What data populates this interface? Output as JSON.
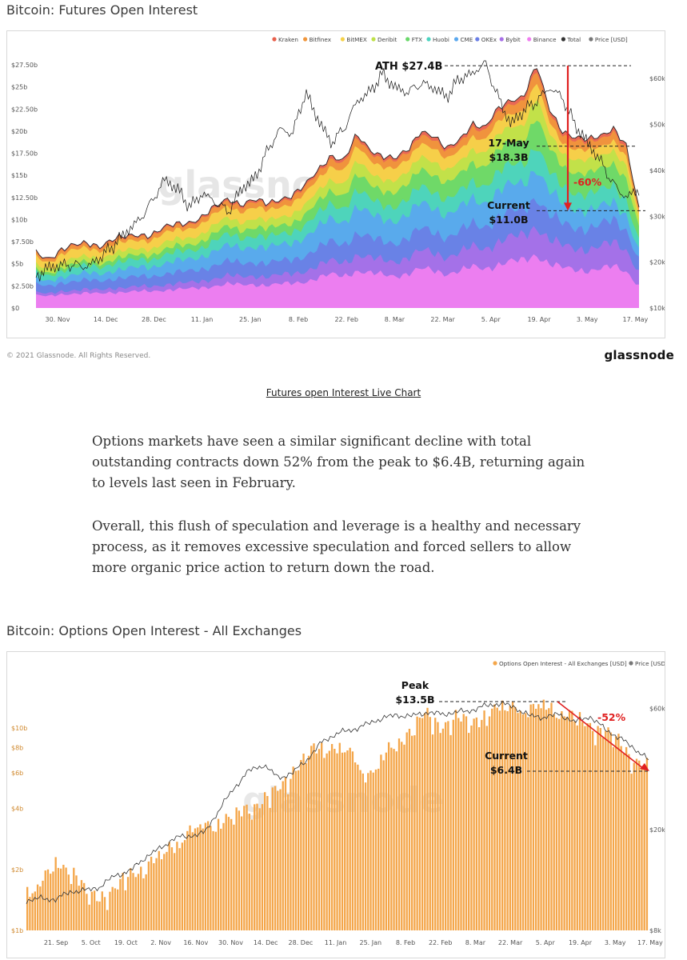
{
  "futures_title": "Bitcoin: Futures Open Interest",
  "copyright": "© 2021 Glassnode. All Rights Reserved.",
  "brand": "glassnode",
  "caption": "Futures open Interest Live Chart",
  "paragraphs": [
    "Options markets have seen a similar significant decline with total outstanding contracts down 52% from the peak to $6.4B, returning again to levels last seen in February.",
    "Overall, this flush of speculation and leverage is a healthy and necessary process, as it removes excessive speculation and forced sellers to allow more organic price action to return down the road."
  ],
  "options_title": "Bitcoin: Options Open Interest - All Exchanges",
  "watermark": "glassnode",
  "chart_data": [
    {
      "type": "area",
      "stacked": true,
      "title": "Bitcoin: Futures Open Interest",
      "legend": [
        {
          "name": "Kraken",
          "color": "#e8604c"
        },
        {
          "name": "Bitfinex",
          "color": "#f0963c"
        },
        {
          "name": "BitMEX",
          "color": "#f6d24a"
        },
        {
          "name": "Deribit",
          "color": "#bfe14a"
        },
        {
          "name": "FTX",
          "color": "#6ad86a"
        },
        {
          "name": "Huobi",
          "color": "#4cd4c0"
        },
        {
          "name": "CME",
          "color": "#5aa8ee"
        },
        {
          "name": "OKEx",
          "color": "#6a7fe6"
        },
        {
          "name": "Bybit",
          "color": "#a870e8"
        },
        {
          "name": "Binance",
          "color": "#f07ef0"
        },
        {
          "name": "Total",
          "color": "#333333"
        },
        {
          "name": "Price [USD]",
          "color": "#777777"
        }
      ],
      "legend_position": "top-right",
      "x_tick_labels": [
        "30. Nov",
        "14. Dec",
        "28. Dec",
        "11. Jan",
        "25. Jan",
        "8. Feb",
        "22. Feb",
        "8. Mar",
        "22. Mar",
        "5. Apr",
        "19. Apr",
        "3. May",
        "17. May"
      ],
      "y_left_labels": [
        "$0",
        "$2.50b",
        "$5b",
        "$7.50b",
        "$10b",
        "$12.50b",
        "$15b",
        "$17.50b",
        "$20b",
        "$22.50b",
        "$25b",
        "$27.50b"
      ],
      "ylim_left": [
        0,
        27.5
      ],
      "y_right_labels": [
        "$10k",
        "$20k",
        "$30k",
        "$40k",
        "$50k",
        "$60k"
      ],
      "ylim_right": [
        10000,
        63000
      ],
      "total_oi_bn": [
        6.2,
        5.7,
        6.6,
        7.0,
        7.4,
        7.1,
        7.7,
        8.0,
        8.4,
        8.3,
        9.0,
        9.5,
        9.8,
        10.3,
        11.4,
        12.4,
        11.8,
        12.2,
        11.7,
        12.4,
        12.8,
        13.8,
        15.6,
        17.4,
        16.6,
        19.5,
        18.0,
        17.3,
        16.8,
        17.8,
        20.2,
        19.5,
        17.8,
        19.0,
        21.0,
        20.3,
        22.4,
        23.6,
        24.0,
        27.4,
        22.5,
        20.2,
        19.3,
        18.9,
        19.5,
        20.5,
        18.3,
        11.0
      ],
      "price_usd": [
        17000,
        18800,
        19300,
        19400,
        19000,
        21000,
        23500,
        26500,
        29000,
        33000,
        38000,
        36000,
        32000,
        35000,
        33000,
        31000,
        36000,
        38000,
        44000,
        49000,
        48000,
        57000,
        51000,
        46000,
        49000,
        55000,
        57000,
        61000,
        58000,
        57000,
        59000,
        58000,
        56000,
        60000,
        61000,
        63500,
        56000,
        50000,
        53000,
        55000,
        58000,
        56000,
        50000,
        46000,
        42000,
        37000,
        34000,
        36000
      ],
      "annotations": [
        {
          "label": "ATH $27.4B",
          "value": 27.4
        },
        {
          "label_top": "17-May",
          "label_bottom": "$18.3B",
          "value": 18.3
        },
        {
          "label_top": "Current",
          "label_bottom": "$11.0B",
          "value": 11.0
        },
        {
          "label": "-60%",
          "color": "#e02020"
        }
      ]
    },
    {
      "type": "bar",
      "title": "Bitcoin: Options Open Interest - All Exchanges",
      "legend": [
        {
          "name": "Options Open Interest - All Exchanges [USD]",
          "color": "#f4a64a"
        },
        {
          "name": "Price [USD]",
          "color": "#777777"
        }
      ],
      "legend_position": "top-right",
      "x_tick_labels": [
        "21. Sep",
        "5. Oct",
        "19. Oct",
        "2. Nov",
        "16. Nov",
        "30. Nov",
        "14. Dec",
        "28. Dec",
        "11. Jan",
        "25. Jan",
        "8. Feb",
        "22. Feb",
        "8. Mar",
        "22. Mar",
        "5. Apr",
        "19. Apr",
        "3. May",
        "17. May"
      ],
      "y_left_labels": [
        "$1b",
        "$2b",
        "$4b",
        "$6b",
        "$8b",
        "$10b"
      ],
      "y_left_tick_values": [
        1,
        2,
        4,
        6,
        8,
        10
      ],
      "log_scale": true,
      "y_right_labels": [
        "$8k",
        "$20k",
        "$60k"
      ],
      "y_right_tick_values": [
        8000,
        20000,
        60000
      ],
      "options_oi_bn": [
        1.6,
        1.7,
        2.2,
        2.0,
        1.5,
        1.5,
        1.6,
        1.9,
        2.1,
        2.3,
        2.7,
        3.1,
        3.3,
        3.5,
        3.6,
        4.1,
        4.4,
        4.9,
        6.2,
        7.4,
        8.1,
        8.2,
        7.3,
        5.9,
        6.9,
        8.4,
        9.9,
        11.6,
        10.4,
        11.2,
        10.6,
        11.8,
        12.4,
        13.3,
        12.0,
        13.2,
        12.3,
        11.2,
        10.6,
        9.7,
        8.7,
        7.2,
        6.4
      ],
      "price_usd": [
        10500,
        10700,
        10600,
        11400,
        11500,
        11900,
        13200,
        13700,
        15500,
        16800,
        18500,
        18900,
        19300,
        23800,
        29000,
        34000,
        36000,
        32000,
        33500,
        38000,
        44500,
        48000,
        49500,
        52000,
        55000,
        56500,
        56000,
        58000,
        57000,
        58000,
        59000,
        61500,
        63000,
        60500,
        56000,
        55500,
        57000,
        53000,
        56000,
        50000,
        46000,
        42000,
        37500
      ],
      "annotations": [
        {
          "label_top": "Peak",
          "label_bottom": "$13.5B",
          "value": 13.5
        },
        {
          "label_top": "Current",
          "label_bottom": "$6.4B",
          "value": 6.4
        },
        {
          "label": "-52%",
          "color": "#e02020"
        }
      ]
    }
  ]
}
